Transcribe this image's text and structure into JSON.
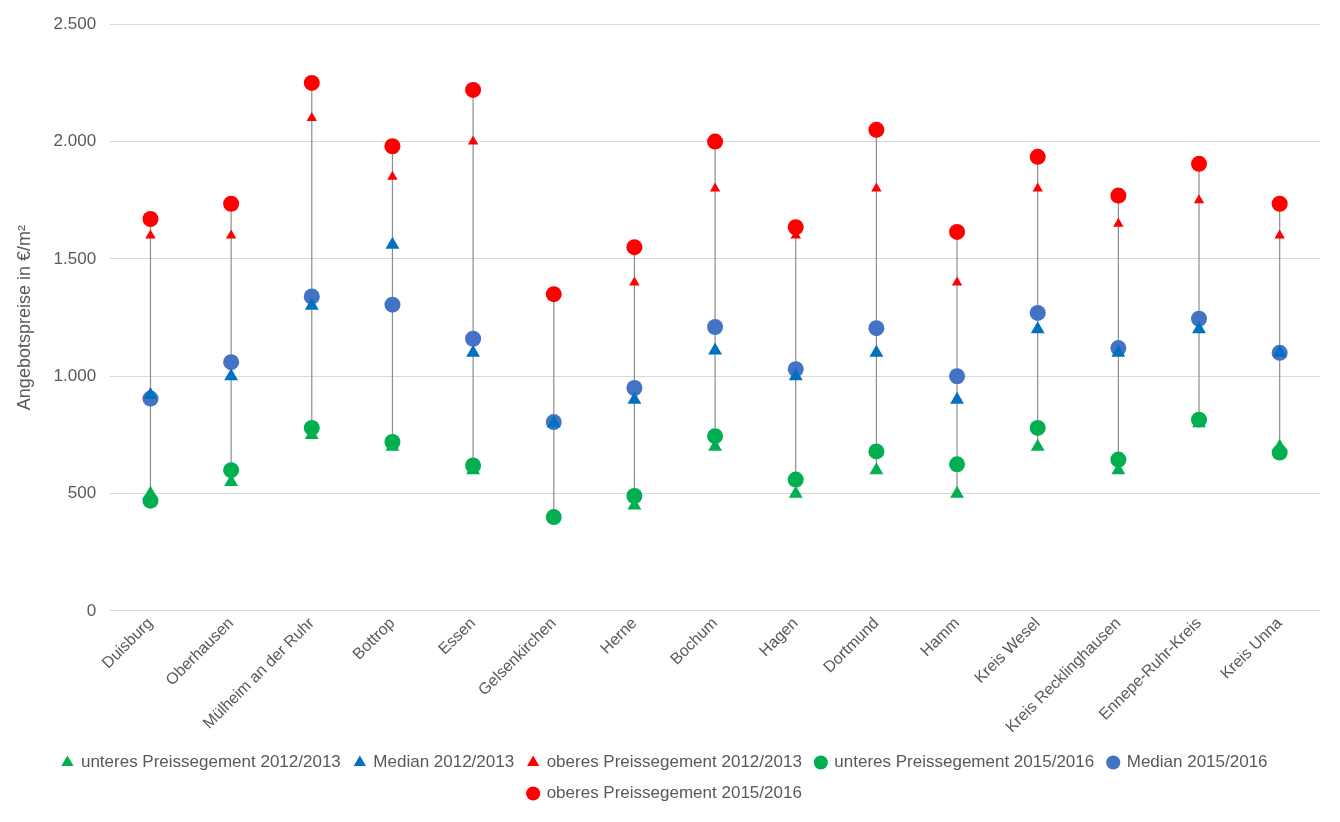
{
  "chart_data": {
    "type": "scatter",
    "ylabel": "Angebotspreise in €/m²",
    "categories": [
      "Duisburg",
      "Oberhausen",
      "Mülheim an der Ruhr",
      "Bottrop",
      "Essen",
      "Gelsenkirchen",
      "Herne",
      "Bochum",
      "Hagen",
      "Dortmund",
      "Hamm",
      "Kreis Wesel",
      "Kreis Recklinghausen",
      "Ennepe-Ruhr-Kreis",
      "Kreis Unna"
    ],
    "ylim": [
      0,
      2500
    ],
    "yticks": [
      0,
      {
        "value": 500,
        "label": "500"
      },
      {
        "value": 1000,
        "label": "1.000"
      },
      {
        "value": 1500,
        "label": "1.500"
      },
      {
        "value": 2000,
        "label": "2.000"
      },
      {
        "value": 2500,
        "label": "2.500"
      }
    ],
    "grid": "y",
    "legend": "bottom",
    "series": [
      {
        "name": "unteres Preissegement 2012/2013",
        "color": "#00b050",
        "marker": "triangle",
        "values": [
          500,
          550,
          750,
          700,
          600,
          null,
          450,
          700,
          500,
          600,
          500,
          700,
          600,
          800,
          700
        ]
      },
      {
        "name": "Median 2012/2013",
        "color": "#0070c0",
        "marker": "triangle",
        "values": [
          920,
          1000,
          1300,
          1560,
          1100,
          800,
          900,
          1110,
          1000,
          1100,
          900,
          1200,
          1100,
          1200,
          1100
        ]
      },
      {
        "name": "oberes Preissegement 2012/2013",
        "color": "#ff0000",
        "marker": "triangle",
        "values": [
          1600,
          1600,
          2100,
          1850,
          2000,
          null,
          1400,
          1800,
          1600,
          1800,
          1400,
          1800,
          1650,
          1750,
          1600
        ]
      },
      {
        "name": "unteres Preissegement 2015/2016",
        "color": "#00b050",
        "marker": "circle",
        "values": [
          470,
          600,
          780,
          720,
          620,
          400,
          490,
          745,
          560,
          680,
          625,
          780,
          645,
          815,
          675
        ]
      },
      {
        "name": "Median 2015/2016",
        "color": "#4472c4",
        "marker": "circle",
        "values": [
          905,
          1060,
          1340,
          1305,
          1160,
          805,
          950,
          1210,
          1030,
          1205,
          1000,
          1270,
          1120,
          1245,
          1100
        ]
      },
      {
        "name": "oberes Preissegement 2015/2016",
        "color": "#ff0000",
        "marker": "circle",
        "values": [
          1670,
          1735,
          2250,
          1980,
          2220,
          1350,
          1550,
          2000,
          1635,
          2050,
          1615,
          1935,
          1770,
          1905,
          1735
        ]
      }
    ]
  }
}
